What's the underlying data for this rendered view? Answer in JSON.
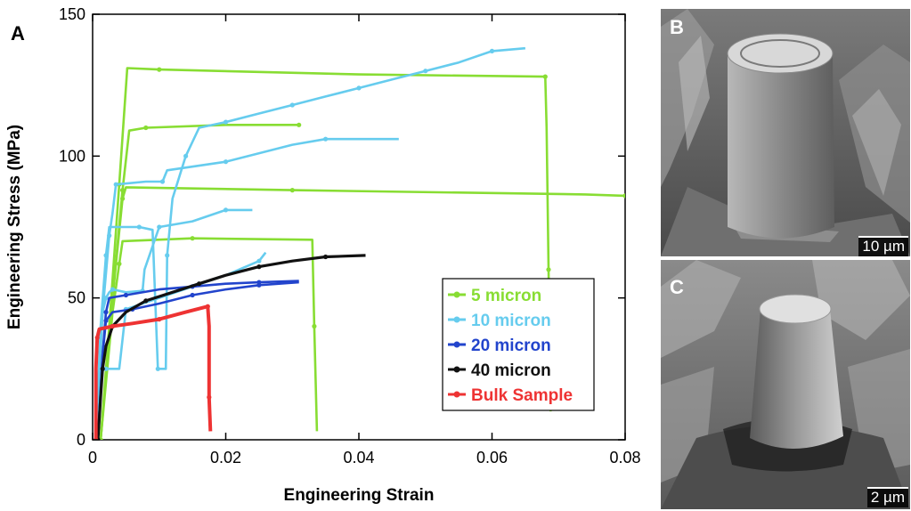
{
  "panels": {
    "a": "A",
    "b": "B",
    "c": "C"
  },
  "scalebars": {
    "b": "10 µm",
    "c": "2 µm"
  },
  "colors": {
    "micron5": "#88dd33",
    "micron10": "#66ccee",
    "micron20": "#2244cc",
    "micron40": "#111111",
    "bulk": "#ee3333"
  },
  "chart_data": {
    "type": "line",
    "xlabel": "Engineering Strain",
    "ylabel": "Engineering Stress (MPa)",
    "xlim": [
      0,
      0.08
    ],
    "ylim": [
      0,
      150
    ],
    "xticks": [
      0,
      0.02,
      0.04,
      0.06,
      0.08
    ],
    "xtick_labels": [
      "0",
      "0.02",
      "0.04",
      "0.06",
      "0.08"
    ],
    "yticks": [
      0,
      50,
      100,
      150
    ],
    "ytick_labels": [
      "0",
      "50",
      "100",
      "150"
    ],
    "grid": false,
    "legend_position": "bottom-right",
    "series": [
      {
        "name": "5 micron",
        "color": "#88dd33",
        "curves": [
          [
            [
              0.0012,
              0
            ],
            [
              0.0025,
              40
            ],
            [
              0.004,
              90
            ],
            [
              0.0052,
              131
            ],
            [
              0.01,
              130.5
            ],
            [
              0.04,
              128.8
            ],
            [
              0.068,
              128
            ],
            [
              0.0682,
              110
            ],
            [
              0.0685,
              60
            ],
            [
              0.0688,
              10
            ]
          ],
          [
            [
              0.0012,
              0
            ],
            [
              0.003,
              50
            ],
            [
              0.0045,
              88
            ],
            [
              0.0055,
              109
            ],
            [
              0.008,
              110
            ],
            [
              0.02,
              111
            ],
            [
              0.031,
              111
            ]
          ],
          [
            [
              0.0012,
              0
            ],
            [
              0.003,
              50
            ],
            [
              0.0045,
              85
            ],
            [
              0.005,
              89
            ],
            [
              0.03,
              88
            ],
            [
              0.074,
              86.5
            ],
            [
              0.08,
              86
            ]
          ],
          [
            [
              0.0012,
              0
            ],
            [
              0.003,
              45
            ],
            [
              0.004,
              62
            ],
            [
              0.0045,
              70
            ],
            [
              0.015,
              71
            ],
            [
              0.033,
              70.5
            ],
            [
              0.0333,
              40
            ],
            [
              0.0337,
              3
            ]
          ]
        ]
      },
      {
        "name": "10 micron",
        "color": "#66ccee",
        "curves": [
          [
            [
              0.0005,
              0
            ],
            [
              0.0012,
              40
            ],
            [
              0.002,
              65
            ],
            [
              0.0025,
              75
            ],
            [
              0.007,
              75
            ],
            [
              0.009,
              74
            ],
            [
              0.0098,
              25
            ],
            [
              0.011,
              25
            ],
            [
              0.0112,
              65
            ],
            [
              0.012,
              85
            ],
            [
              0.014,
              100
            ],
            [
              0.016,
              110
            ],
            [
              0.02,
              112
            ],
            [
              0.025,
              115
            ],
            [
              0.03,
              118
            ],
            [
              0.035,
              121
            ],
            [
              0.04,
              124
            ],
            [
              0.045,
              127
            ],
            [
              0.05,
              130
            ],
            [
              0.055,
              133
            ],
            [
              0.06,
              137
            ],
            [
              0.065,
              138
            ]
          ],
          [
            [
              0.0005,
              0
            ],
            [
              0.0015,
              45
            ],
            [
              0.0025,
              72
            ],
            [
              0.003,
              80
            ],
            [
              0.0035,
              90
            ],
            [
              0.008,
              91
            ],
            [
              0.0105,
              91
            ],
            [
              0.0112,
              95
            ],
            [
              0.02,
              98
            ],
            [
              0.03,
              104
            ],
            [
              0.035,
              106
            ],
            [
              0.046,
              106
            ]
          ],
          [
            [
              0.0005,
              0
            ],
            [
              0.0015,
              45
            ],
            [
              0.002,
              50
            ],
            [
              0.0025,
              52
            ],
            [
              0.003,
              53
            ],
            [
              0.005,
              52
            ],
            [
              0.0075,
              52.5
            ],
            [
              0.0078,
              60
            ],
            [
              0.01,
              75
            ],
            [
              0.015,
              77
            ],
            [
              0.02,
              81
            ],
            [
              0.024,
              81
            ]
          ],
          [
            [
              0.0005,
              0
            ],
            [
              0.0015,
              25
            ],
            [
              0.002,
              25
            ],
            [
              0.004,
              25
            ],
            [
              0.005,
              46
            ],
            [
              0.01,
              50
            ],
            [
              0.015,
              54
            ],
            [
              0.02,
              58
            ],
            [
              0.025,
              63
            ],
            [
              0.026,
              66
            ]
          ]
        ]
      },
      {
        "name": "20 micron",
        "color": "#2244cc",
        "curves": [
          [
            [
              0.0008,
              0
            ],
            [
              0.0015,
              30
            ],
            [
              0.002,
              45
            ],
            [
              0.0025,
              50
            ],
            [
              0.005,
              51
            ],
            [
              0.01,
              53
            ],
            [
              0.015,
              54
            ],
            [
              0.02,
              55
            ],
            [
              0.025,
              55.5
            ],
            [
              0.031,
              56
            ]
          ],
          [
            [
              0.0008,
              0
            ],
            [
              0.0015,
              30
            ],
            [
              0.002,
              42
            ],
            [
              0.003,
              45
            ],
            [
              0.006,
              46
            ],
            [
              0.01,
              48
            ],
            [
              0.015,
              51
            ],
            [
              0.02,
              53
            ],
            [
              0.025,
              54.5
            ],
            [
              0.031,
              55.5
            ]
          ]
        ]
      },
      {
        "name": "40 micron",
        "color": "#111111",
        "curves": [
          [
            [
              0.0008,
              0
            ],
            [
              0.0012,
              15
            ],
            [
              0.0015,
              25
            ],
            [
              0.002,
              33
            ],
            [
              0.003,
              40
            ],
            [
              0.005,
              45
            ],
            [
              0.008,
              49
            ],
            [
              0.012,
              52
            ],
            [
              0.016,
              55
            ],
            [
              0.02,
              58
            ],
            [
              0.025,
              61
            ],
            [
              0.03,
              63
            ],
            [
              0.035,
              64.5
            ],
            [
              0.041,
              65
            ]
          ]
        ]
      },
      {
        "name": "Bulk Sample",
        "color": "#ee3333",
        "curves": [
          [
            [
              0.0005,
              0
            ],
            [
              0.0005,
              25
            ],
            [
              0.0007,
              36
            ],
            [
              0.001,
              39
            ],
            [
              0.003,
              40
            ],
            [
              0.006,
              41
            ],
            [
              0.01,
              42.5
            ],
            [
              0.014,
              45
            ],
            [
              0.0173,
              47
            ],
            [
              0.0175,
              40
            ],
            [
              0.0175,
              15
            ],
            [
              0.0177,
              3
            ]
          ]
        ]
      }
    ]
  }
}
